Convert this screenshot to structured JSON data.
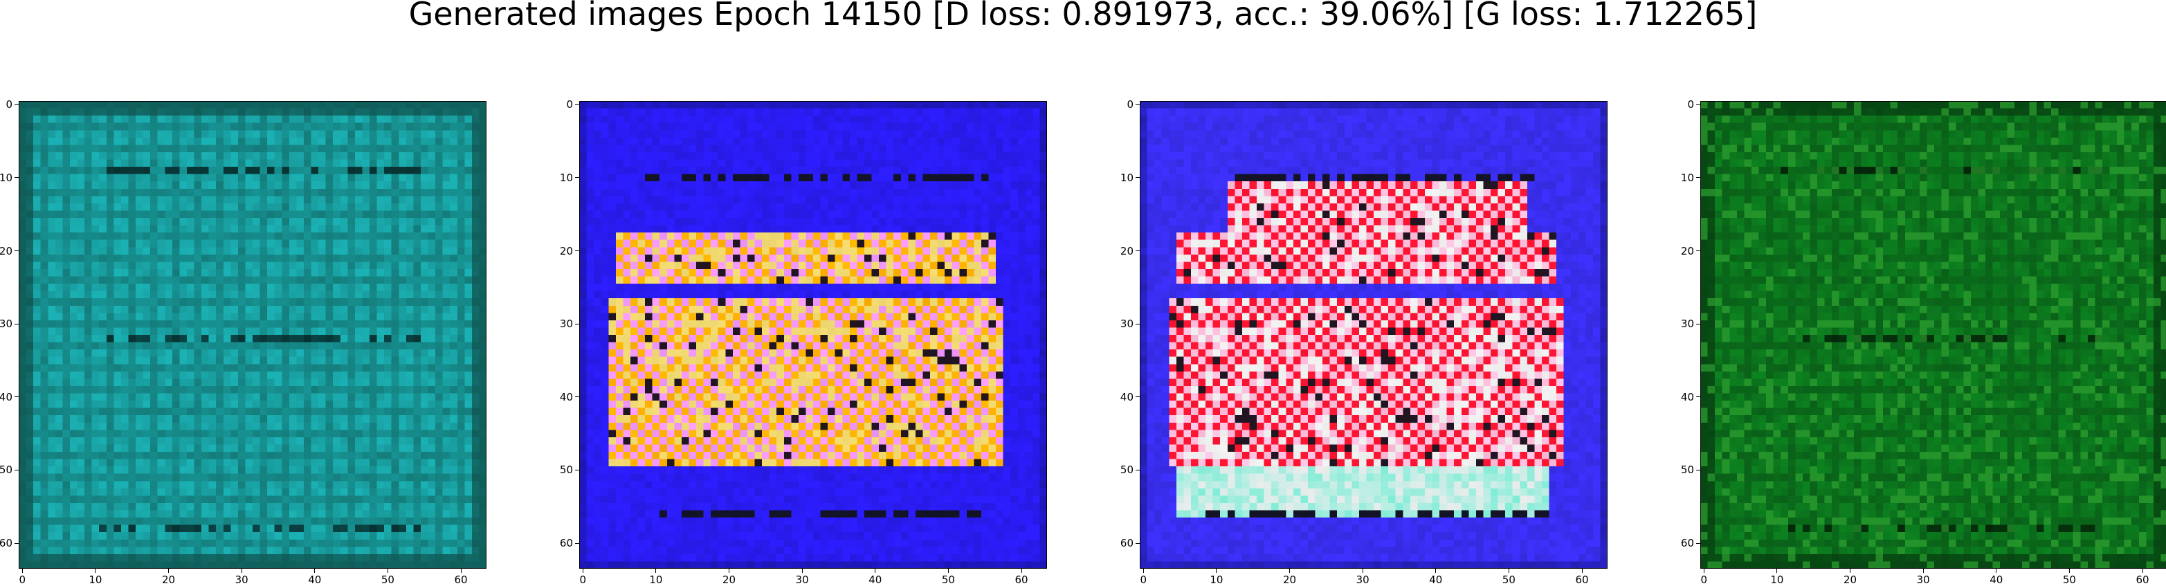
{
  "title": "Generated images Epoch 14150 [D loss: 0.891973, acc.: 39.06%] [G loss: 1.712265]",
  "axis": {
    "range": [
      0,
      63
    ],
    "x_ticks": [
      "0",
      "10",
      "20",
      "30",
      "40",
      "50",
      "60"
    ],
    "y_ticks": [
      "0",
      "10",
      "20",
      "30",
      "40",
      "50",
      "60"
    ]
  },
  "panels": [
    {
      "name": "generated-image-1",
      "palette": "teal",
      "base_color": "#1aa7a9",
      "accent_color": "#0e4f4a"
    },
    {
      "name": "generated-image-2",
      "palette": "blue-orange",
      "base_color": "#2a1cf2",
      "accent_color": "#ffb000"
    },
    {
      "name": "generated-image-3",
      "palette": "blue-red",
      "base_color": "#3a2ef0",
      "accent_color": "#ff1030"
    },
    {
      "name": "generated-image-4",
      "palette": "green",
      "base_color": "#0c7a1e",
      "accent_color": "#063a10"
    }
  ]
}
